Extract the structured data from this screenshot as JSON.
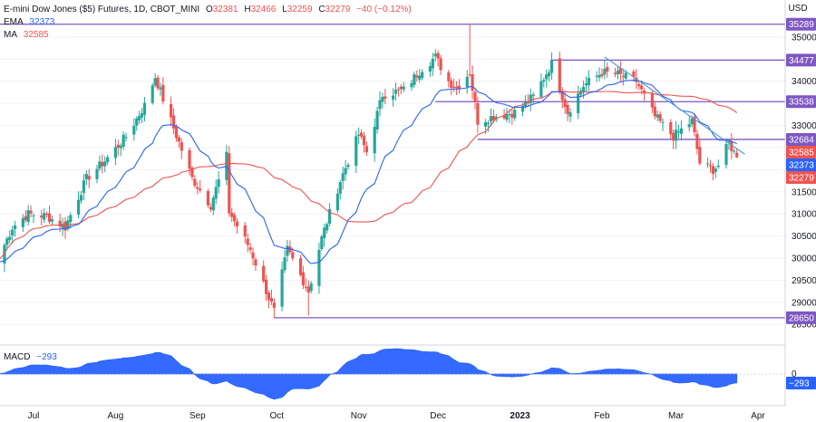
{
  "header": {
    "symbol": "E-mini Dow Jones ($5) Futures, 1D, CBOT_MINI",
    "ohlc": [
      {
        "key": "O",
        "value": "32381"
      },
      {
        "key": "H",
        "value": "32466"
      },
      {
        "key": "L",
        "value": "32259"
      },
      {
        "key": "C",
        "value": "32279"
      }
    ],
    "change": "−40 (−0.12%)",
    "ema_label": "EMA",
    "ema_value": "32373",
    "ma_label": "MA",
    "ma_value": "32585",
    "macd_label": "MACD",
    "macd_value": "−293"
  },
  "colors": {
    "up": "#26a69a",
    "down": "#ef5350",
    "ema": "#2962ff",
    "ma": "#ef5350",
    "level": "#7e57c2",
    "trendline": "#5b9bd5",
    "macd": "#2962ff",
    "axis_text": "#131722",
    "grid": "#f0f3fa"
  },
  "chart_data": {
    "type": "candlestick",
    "currency_label": "USD",
    "price_axis": {
      "min": 28300,
      "max": 35550,
      "ticks": [
        35000,
        34500,
        34000,
        33500,
        33000,
        32500,
        32000,
        31500,
        31000,
        30500,
        30000,
        29500,
        29000,
        28500
      ]
    },
    "time_axis": {
      "labels": [
        "Jul",
        "Aug",
        "Sep",
        "Oct",
        "Nov",
        "Dec",
        "2023",
        "Feb",
        "Mar",
        "Apr"
      ]
    },
    "price_labels": [
      {
        "text": "35289",
        "value": 35289,
        "color": "#7e57c2"
      },
      {
        "text": "34477",
        "value": 34477,
        "color": "#7e57c2"
      },
      {
        "text": "33538",
        "value": 33538,
        "color": "#7e57c2"
      },
      {
        "text": "32684",
        "value": 32684,
        "color": "#7e57c2"
      },
      {
        "text": "32585",
        "value": 32585,
        "color": "#ef5350"
      },
      {
        "text": "32373",
        "value": 32373,
        "color": "#2962ff"
      },
      {
        "text": "32279",
        "value": 32279,
        "color": "#ef5350"
      },
      {
        "text": "28650",
        "value": 28650,
        "color": "#7e57c2"
      }
    ],
    "levels": [
      {
        "value": 35289,
        "from": "2022-06-20",
        "to": "2023-03-24"
      },
      {
        "value": 34477,
        "from": "2023-01-13",
        "to": "2023-03-24"
      },
      {
        "value": 33538,
        "from": "2022-11-30",
        "to": "2023-03-24"
      },
      {
        "value": 32684,
        "from": "2022-12-16",
        "to": "2023-03-24"
      },
      {
        "value": 28650,
        "from": "2022-09-30",
        "to": "2023-03-24"
      }
    ],
    "trendline": {
      "from": [
        "2023-02-02",
        34550
      ],
      "to": [
        "2023-03-27",
        32350
      ]
    },
    "waypoints": [
      [
        "2022-06-17",
        29900
      ],
      [
        "2022-06-23",
        30700
      ],
      [
        "2022-06-29",
        31000
      ],
      [
        "2022-07-06",
        30950
      ],
      [
        "2022-07-13",
        30700
      ],
      [
        "2022-07-21",
        31800
      ],
      [
        "2022-07-28",
        32200
      ],
      [
        "2022-08-05",
        32750
      ],
      [
        "2022-08-12",
        33450
      ],
      [
        "2022-08-16",
        34100
      ],
      [
        "2022-08-22",
        33100
      ],
      [
        "2022-08-30",
        31800
      ],
      [
        "2022-09-06",
        31200
      ],
      [
        "2022-09-12",
        32300
      ],
      [
        "2022-09-13",
        31050
      ],
      [
        "2022-09-21",
        30200
      ],
      [
        "2022-09-30",
        28800
      ],
      [
        "2022-10-05",
        30200
      ],
      [
        "2022-10-13",
        29250
      ],
      [
        "2022-10-18",
        30450
      ],
      [
        "2022-10-25",
        31750
      ],
      [
        "2022-11-01",
        32800
      ],
      [
        "2022-11-04",
        32400
      ],
      [
        "2022-11-10",
        33700
      ],
      [
        "2022-11-18",
        33800
      ],
      [
        "2022-11-25",
        34300
      ],
      [
        "2022-11-30",
        34550
      ],
      [
        "2022-12-05",
        34000
      ],
      [
        "2022-12-08",
        33850
      ],
      [
        "2022-12-13",
        34200
      ],
      [
        "2022-12-16",
        33100
      ],
      [
        "2022-12-22",
        33200
      ],
      [
        "2022-12-30",
        33300
      ],
      [
        "2023-01-06",
        33650
      ],
      [
        "2023-01-13",
        34400
      ],
      [
        "2023-01-19",
        33300
      ],
      [
        "2023-01-25",
        33900
      ],
      [
        "2023-02-01",
        34200
      ],
      [
        "2023-02-07",
        34150
      ],
      [
        "2023-02-14",
        34000
      ],
      [
        "2023-02-21",
        33200
      ],
      [
        "2023-02-28",
        32750
      ],
      [
        "2023-03-07",
        33100
      ],
      [
        "2023-03-10",
        32150
      ],
      [
        "2023-03-15",
        32000
      ],
      [
        "2023-03-17",
        32100
      ],
      [
        "2023-03-21",
        32600
      ],
      [
        "2023-03-24",
        32279
      ]
    ],
    "special_bars": [
      {
        "date": "2022-12-13",
        "high": 35289
      },
      {
        "date": "2022-09-30",
        "low": 28650
      },
      {
        "date": "2022-10-13",
        "low": 28700
      }
    ],
    "last_bar": {
      "date": "2023-03-24",
      "open": 32381,
      "high": 32466,
      "low": 32259,
      "close": 32279
    },
    "ema": {
      "period": 20,
      "last": 32373
    },
    "ma": {
      "period": 50,
      "last": 32585
    },
    "macd": {
      "label": "MACD",
      "last": -293,
      "zero_label": "0"
    }
  }
}
